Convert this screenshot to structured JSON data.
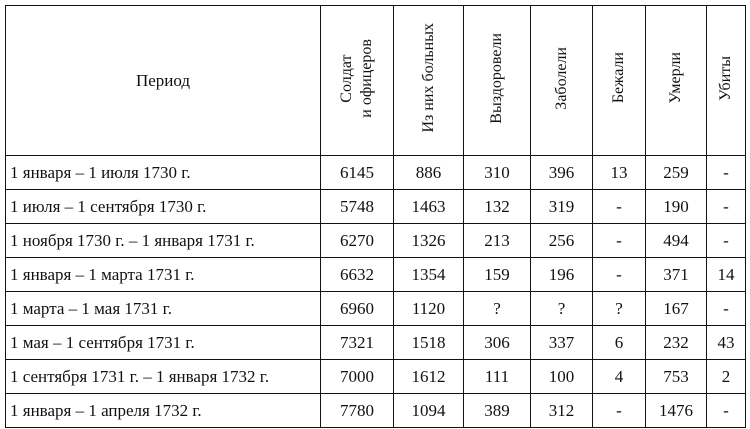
{
  "table": {
    "header": [
      "Период",
      "Солдат\nи офицеров",
      "Из них больных",
      "Выздоровели",
      "Заболели",
      "Бежали",
      "Умерли",
      "Убиты"
    ],
    "rows": [
      [
        "1 января – 1 июля 1730 г.",
        "6145",
        "886",
        "310",
        "396",
        "13",
        "259",
        "-"
      ],
      [
        "1 июля – 1 сентября 1730 г.",
        "5748",
        "1463",
        "132",
        "319",
        "-",
        "190",
        "-"
      ],
      [
        "1 ноября 1730 г. – 1 января 1731 г.",
        "6270",
        "1326",
        "213",
        "256",
        "-",
        "494",
        "-"
      ],
      [
        "1 января – 1 марта 1731 г.",
        "6632",
        "1354",
        "159",
        "196",
        "-",
        "371",
        "14"
      ],
      [
        "1 марта – 1 мая 1731 г.",
        "6960",
        "1120",
        "?",
        "?",
        "?",
        "167",
        "-"
      ],
      [
        "1 мая – 1 сентября 1731 г.",
        "7321",
        "1518",
        "306",
        "337",
        "6",
        "232",
        "43"
      ],
      [
        "1 сентября 1731 г. – 1 января 1732 г.",
        "7000",
        "1612",
        "111",
        "100",
        "4",
        "753",
        "2"
      ],
      [
        "1 января – 1 апреля 1732 г.",
        "7780",
        "1094",
        "389",
        "312",
        "-",
        "1476",
        "-"
      ]
    ]
  }
}
